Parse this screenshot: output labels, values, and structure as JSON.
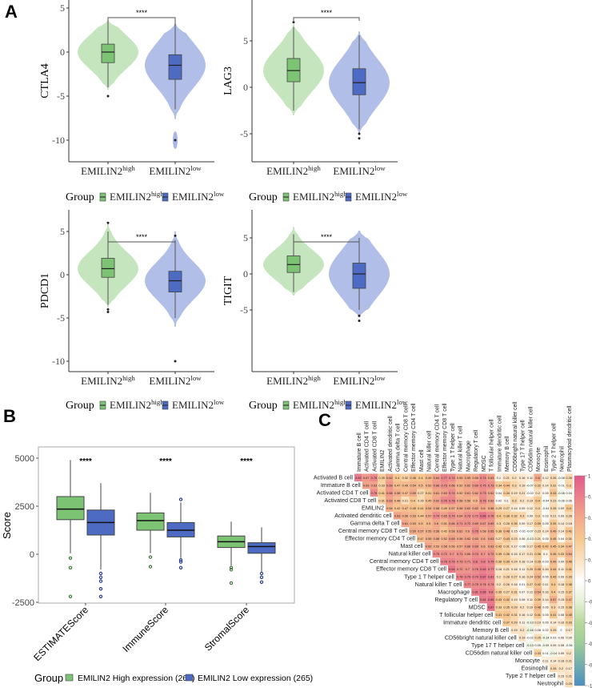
{
  "panel_labels": {
    "a": "A",
    "b": "B",
    "c": "C"
  },
  "chart_data": [
    {
      "type": "violin",
      "panel": "A",
      "ylabel": "CTLA4",
      "yticks": [
        5,
        0,
        -5,
        -10
      ],
      "significance": "****",
      "categories": [
        {
          "base": "EMILIN2",
          "sup": "high"
        },
        {
          "base": "EMILIN2",
          "sup": "low"
        }
      ],
      "legend": {
        "title": "Group",
        "items": [
          {
            "base": "EMILIN2",
            "sup": "high"
          },
          {
            "base": "EMILIN2",
            "sup": "low"
          }
        ]
      },
      "groups": [
        {
          "range": [
            -4.3,
            3.6
          ],
          "q1": -1.2,
          "median": 0,
          "q3": 0.9,
          "whisker": [
            -4,
            3.6
          ],
          "outliers": [
            -5
          ]
        },
        {
          "range": [
            -7.6,
            3.2
          ],
          "q1": -3.1,
          "median": -1.5,
          "q3": -0.3,
          "whisker": [
            -6.5,
            3.8
          ],
          "outliers": [
            -10
          ],
          "tail": [
            -11,
            -9
          ]
        }
      ]
    },
    {
      "type": "violin",
      "panel": "A",
      "ylabel": "LAG3",
      "yticks": [
        5,
        0,
        -5
      ],
      "significance": "****",
      "categories": [
        {
          "base": "EMILIN2",
          "sup": "high"
        },
        {
          "base": "EMILIN2",
          "sup": "low"
        }
      ],
      "legend": {
        "title": "Group",
        "items": [
          {
            "base": "EMILIN2",
            "sup": "high"
          },
          {
            "base": "EMILIN2",
            "sup": "low"
          }
        ]
      },
      "groups": [
        {
          "range": [
            -3,
            6.8
          ],
          "q1": 0.6,
          "median": 1.8,
          "q3": 3.1,
          "whisker": [
            -2.5,
            6.5
          ],
          "outliers": [
            7
          ]
        },
        {
          "range": [
            -5,
            6
          ],
          "q1": -0.8,
          "median": 0.5,
          "q3": 2,
          "whisker": [
            -4.5,
            5.6
          ],
          "outliers": [
            -5.5,
            -5
          ]
        }
      ]
    },
    {
      "type": "violin",
      "panel": "A",
      "ylabel": "PDCD1",
      "yticks": [
        5,
        0,
        -5,
        -10
      ],
      "significance": "****",
      "categories": [
        {
          "base": "EMILIN2",
          "sup": "high"
        },
        {
          "base": "EMILIN2",
          "sup": "low"
        }
      ],
      "legend": {
        "title": "Group",
        "items": [
          {
            "base": "EMILIN2",
            "sup": "high"
          },
          {
            "base": "EMILIN2",
            "sup": "low"
          }
        ]
      },
      "groups": [
        {
          "range": [
            -3.8,
            6
          ],
          "q1": -0.3,
          "median": 0.7,
          "q3": 1.9,
          "whisker": [
            -3.5,
            5
          ],
          "outliers": [
            -4,
            -4.3,
            6
          ]
        },
        {
          "range": [
            -6,
            5
          ],
          "q1": -2,
          "median": -0.7,
          "q3": 0.4,
          "whisker": [
            -5,
            4
          ],
          "outliers": [
            -10,
            4.5
          ]
        }
      ]
    },
    {
      "type": "violin",
      "panel": "A",
      "ylabel": "TIGIT",
      "yticks": [
        5,
        0,
        -5
      ],
      "significance": "****",
      "categories": [
        {
          "base": "EMILIN2",
          "sup": "high"
        },
        {
          "base": "EMILIN2",
          "sup": "low"
        }
      ],
      "legend": {
        "title": "Group",
        "items": [
          {
            "base": "EMILIN2",
            "sup": "high"
          },
          {
            "base": "EMILIN2",
            "sup": "low"
          }
        ]
      },
      "groups": [
        {
          "range": [
            -3,
            6.5
          ],
          "q1": 0.2,
          "median": 1.3,
          "q3": 2.5,
          "whisker": [
            -2.5,
            5.5
          ],
          "outliers": []
        },
        {
          "range": [
            -6,
            6
          ],
          "q1": -2,
          "median": 0,
          "q3": 1.5,
          "whisker": [
            -5,
            5
          ],
          "outliers": [
            -5.8,
            -6.5
          ]
        }
      ]
    },
    {
      "type": "box",
      "panel": "B",
      "ylabel": "Score",
      "yticks": [
        5000,
        2500,
        0,
        -2500
      ],
      "categories": [
        "ESTIMATEScore",
        "ImmuneScore",
        "StromalScore"
      ],
      "significance": [
        "****",
        "****",
        "****"
      ],
      "legend": {
        "title": "Group",
        "items": [
          "EMILIN2 High expression (266)",
          "EMILIN2 Low expression (265)"
        ]
      },
      "series": [
        {
          "name": "EMILIN2 High expression (266)",
          "boxes": [
            {
              "min": 50,
              "q1": 1800,
              "median": 2350,
              "q3": 3000,
              "max": 4900,
              "outliers": [
                -200,
                -700,
                -2200
              ]
            },
            {
              "min": 50,
              "q1": 1250,
              "median": 1750,
              "q3": 2150,
              "max": 3200,
              "outliers": [
                -150,
                -650
              ]
            },
            {
              "min": -600,
              "q1": 350,
              "median": 650,
              "q3": 950,
              "max": 1700,
              "outliers": [
                -700,
                -800,
                -1500
              ]
            }
          ]
        },
        {
          "name": "EMILIN2 Low expression (265)",
          "boxes": [
            {
              "min": -800,
              "q1": 1000,
              "median": 1650,
              "q3": 2300,
              "max": 3700,
              "outliers": [
                -1000,
                -1200,
                -1400,
                -1800,
                -2200
              ]
            },
            {
              "min": -200,
              "q1": 900,
              "median": 1250,
              "q3": 1650,
              "max": 2700,
              "outliers": [
                -300,
                -400,
                -700,
                2850
              ]
            },
            {
              "min": -900,
              "q1": 50,
              "median": 400,
              "q3": 600,
              "max": 1400,
              "outliers": [
                -1000,
                -1200,
                -1450
              ]
            }
          ]
        }
      ]
    },
    {
      "type": "heatmap",
      "panel": "C",
      "row_labels": [
        "Activated B cell",
        "Immature  B cell",
        "Activated CD4 T cell",
        "Activated CD8 T cell",
        "EMILIN2",
        "Activated dendritic cell",
        "Gamma delta T cell",
        "Central memory CD8 T cell",
        "Effector memory CD4 T cell",
        "Mast cell",
        "Natural killer cell",
        "Central memory CD4 T cell",
        "Effector memory CD8 T cell",
        "Type 1 T helper cell",
        "Natural killer T cell",
        "Macrophage",
        "Regulatory T cell",
        "MDSC",
        "T follicular helper cell",
        "Immature dendritic cell",
        "Memory B cell",
        "CD56bright natural killer cell",
        "Type 17 T helper cell",
        "CD56dim natural killer cell",
        "Monocyte",
        "Eosinophil",
        "Type 2 T helper cell",
        "Neutrophil"
      ],
      "col_labels": [
        "Immature  B cell",
        "Activated CD4 T cell",
        "Activated CD8 T cell",
        "EMILIN2",
        "Activated dendritic cell",
        "Gamma delta T cell",
        "Central memory CD8 T cell",
        "Effector memory CD4 T cell",
        "Mast cell",
        "Natural killer cell",
        "Central memory CD4 T cell",
        "Effector memory CD8 T cell",
        "Type 1 T helper cell",
        "Natural killer T cell",
        "Macrophage",
        "Regulatory T cell",
        "MDSC",
        "T follicular helper cell",
        "Immature dendritic cell",
        "Memory B cell",
        "CD56bright natural killer cell",
        "Type 17 T helper cell",
        "CD56dim natural killer cell",
        "Monocyte",
        "Eosinophil",
        "Type 2 T helper cell",
        "Neutrophil",
        "Plasmacytoid dendritic cell"
      ],
      "values": [
        [
          0.82,
          0.67,
          0.76,
          0.35,
          0.62,
          0.4,
          0.32,
          0.46,
          0.4,
          0.49,
          0.64,
          0.77,
          0.74,
          0.55,
          0.59,
          0.58,
          0.74,
          0.63,
          0.1,
          0.21,
          0.2,
          0.16,
          0.11,
          0.6,
          0.12,
          0.26,
          -0.08,
          0.26
        ],
        [
          0.63,
          0.63,
          0.33,
          0.69,
          0.47,
          0.49,
          0.54,
          0.5,
          0.52,
          0.68,
          0.73,
          0.66,
          0.52,
          0.62,
          0.69,
          0.75,
          0.73,
          0.34,
          0.44,
          0.3,
          0.19,
          -0.07,
          0.32,
          0.14,
          0.31,
          -0.01,
          0.3
        ],
        [
          0.76,
          0.41,
          0.68,
          0.58,
          0.47,
          0.59,
          0.27,
          0.41,
          0.61,
          0.63,
          0.74,
          0.52,
          0.61,
          0.62,
          0.73,
          0.62,
          0.04,
          0.34,
          0.19,
          0.21,
          -0.02,
          0.2,
          0.05,
          0.43,
          -0.08,
          0.04
        ],
        [
          0.31,
          0.63,
          0.48,
          0.21,
          0.4,
          0.26,
          0.45,
          0.62,
          0.76,
          0.78,
          0.58,
          0.56,
          0.5,
          0.76,
          0.62,
          0.02,
          0.1,
          0.3,
          0.2,
          0.19,
          0.4,
          -0.04,
          0.23,
          -0.06,
          0.06
        ],
        [
          0.54,
          0.42,
          0.47,
          0.45,
          0.41,
          0.54,
          0.58,
          0.49,
          0.57,
          0.58,
          0.62,
          0.62,
          0.6,
          0.58,
          0.29,
          0.27,
          0.14,
          0.09,
          0.12,
          0.3,
          -0.04,
          0.28,
          0.09,
          0.4
        ],
        [
          0.63,
          0.56,
          0.53,
          0.44,
          0.57,
          0.74,
          0.65,
          0.74,
          0.64,
          0.73,
          0.72,
          0.86,
          0.76,
          0.4,
          0.38,
          0.32,
          0.3,
          0.09,
          0.3,
          0.03,
          0.21,
          0.09,
          0.26
        ],
        [
          0.61,
          0.53,
          0.5,
          0.5,
          0.6,
          0.51,
          0.66,
          0.71,
          0.72,
          0.69,
          0.67,
          0.69,
          0.3,
          0.28,
          0.35,
          0.09,
          0.17,
          0.39,
          0.05,
          0.39,
          0.14,
          0.18
        ],
        [
          0.59,
          0.57,
          0.55,
          0.58,
          0.42,
          0.58,
          0.62,
          0.6,
          0.76,
          0.58,
          0.65,
          0.38,
          0.48,
          0.15,
          -0.01,
          -0.07,
          0.23,
          0.14,
          0.49,
          0.14,
          0.41
        ],
        [
          0.47,
          0.55,
          0.58,
          0.52,
          0.65,
          0.58,
          0.62,
          0.63,
          0.6,
          0.63,
          0.27,
          0.43,
          0.23,
          0.06,
          -0.13,
          0.21,
          0.05,
          0.45,
          0.04,
          0.31
        ],
        [
          0.62,
          0.53,
          0.58,
          0.56,
          0.57,
          0.66,
          0.69,
          0.6,
          0.63,
          0.42,
          0.31,
          0.17,
          -0.06,
          0.17,
          0.45,
          0.42,
          0.45,
          0.34,
          0.47
        ],
        [
          0.75,
          0.72,
          0.7,
          0.71,
          0.65,
          0.74,
          0.7,
          0.72,
          0.39,
          0.36,
          0.15,
          0.17,
          0.21,
          0.38,
          0.1,
          0.45,
          0.33,
          0.54
        ],
        [
          0.79,
          0.79,
          0.73,
          0.71,
          0.8,
          0.8,
          0.79,
          0.36,
          0.39,
          0.24,
          0.18,
          0.14,
          0.35,
          0.03,
          0.49,
          0.09,
          0.46
        ],
        [
          0.84,
          0.72,
          0.7,
          0.76,
          0.82,
          0.77,
          0.18,
          0.21,
          0.18,
          0.11,
          0.25,
          0.45,
          0.16,
          0.44,
          0.11,
          0.41
        ],
        [
          0.78,
          0.79,
          0.79,
          0.87,
          0.81,
          0.2,
          0.28,
          0.27,
          0.16,
          0.24,
          0.52,
          0.06,
          0.43,
          0.09,
          0.33
        ],
        [
          0.77,
          0.75,
          0.76,
          0.74,
          0.2,
          0.26,
          0.16,
          0.01,
          0.27,
          0.42,
          0.11,
          0.4,
          0.18,
          0.38
        ],
        [
          0.81,
          0.85,
          0.8,
          0.35,
          0.27,
          0.31,
          0.07,
          0.12,
          0.54,
          0.16,
          0.4,
          0.15,
          0.37
        ],
        [
          0.82,
          0.85,
          0.43,
          0.42,
          0.19,
          0.08,
          0.11,
          0.39,
          0.14,
          0.57,
          0.15,
          0.47
        ],
        [
          0.87,
          0.33,
          0.35,
          0.29,
          0.2,
          0.19,
          0.48,
          0.06,
          0.3,
          0.15,
          0.38
        ],
        [
          0.41,
          0.42,
          0.31,
          0.16,
          0.12,
          0.41,
          0.05,
          0.41,
          0.08,
          0.45
        ],
        [
          0.37,
          0.29,
          0.11,
          -0.13,
          0.19,
          0.05,
          0.14,
          0.16,
          0.33
        ],
        [
          0.19,
          0.2,
          -0.16,
          0.08,
          0.02,
          0.25,
          0,
          0.17
        ],
        [
          0.19,
          -0.02,
          0.25,
          -0.14,
          0.03,
          0.06,
          0.09
        ],
        [
          -0.13,
          0.05,
          -0.09,
          0.09,
          0.08,
          -0.06
        ],
        [
          0.33,
          0.01,
          -0.14,
          0.09,
          0.2
        ],
        [
          0.11,
          0.14,
          0.18,
          0.21
        ],
        [
          0.28,
          0.2,
          0.17
        ],
        [
          0.15,
          0.21
        ],
        [
          0.25
        ]
      ],
      "colorbar": {
        "ticks": [
          "1",
          "0.8",
          "0.6",
          "0.4",
          "0.2",
          "0",
          "-0.2",
          "-0.4",
          "-0.6",
          "-0.8",
          "-1"
        ],
        "range": [
          -1,
          1
        ]
      }
    }
  ],
  "colors": {
    "high_box": "#7cc374",
    "high_violin": "#bfe2b8",
    "low_box": "#4d6bc2",
    "low_violin": "#a9b7e5",
    "heat_pos": "#e2598c",
    "heat_mid_pos": "#f6c88f",
    "heat_zero": "#ffffff",
    "heat_mid_neg": "#b9d89c",
    "heat_neg": "#4b8fc2"
  }
}
